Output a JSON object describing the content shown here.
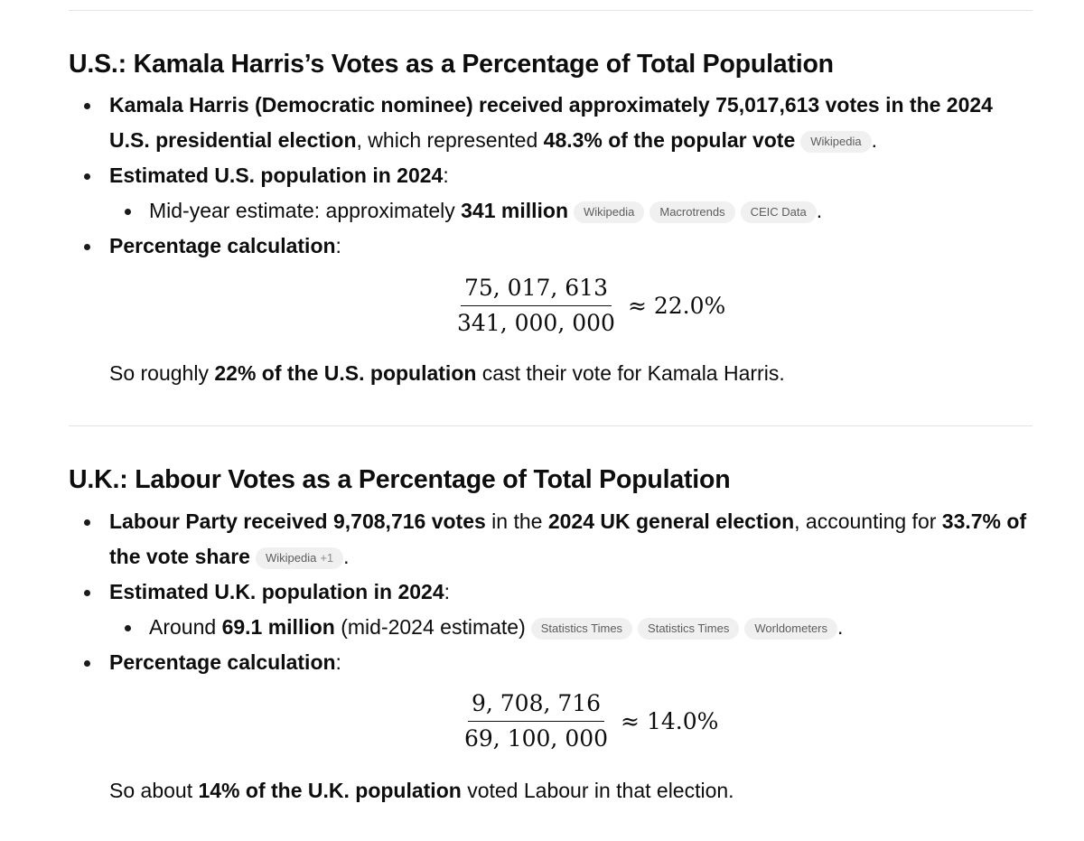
{
  "us": {
    "title": "U.S.: Kamala Harris’s Votes as a Percentage of Total Population",
    "b1": {
      "bold1": "Kamala Harris (Democratic nominee) received approximately 75,017,613 votes in the 2024 U.S. presidential election",
      "text1": ", which represented ",
      "bold2": "48.3% of the popular vote",
      "sources": [
        "Wikipedia"
      ],
      "end": "."
    },
    "b2": {
      "bold": "Estimated U.S. population in 2024",
      "text": ":"
    },
    "b2_sub": {
      "text": "Mid-year estimate: approximately ",
      "bold": "341 million",
      "sources": [
        "Wikipedia",
        "Macrotrends",
        "CEIC Data"
      ],
      "end": "."
    },
    "b3": {
      "bold": "Percentage calculation",
      "text": ":"
    },
    "equation": {
      "numerator": "75, 017, 613",
      "denominator": "341, 000, 000",
      "result": "≈ 22.0%"
    },
    "summary": {
      "text1": "So roughly ",
      "bold": "22% of the U.S. population",
      "text2": " cast their vote for Kamala Harris."
    }
  },
  "uk": {
    "title": "U.K.: Labour Votes as a Percentage of Total Population",
    "b1": {
      "bold1": "Labour Party received 9,708,716 votes",
      "text1": " in the ",
      "bold2": "2024 UK general election",
      "text2": ", accounting for ",
      "bold3": "33.7% of the vote share",
      "source_label": "Wikipedia",
      "source_extra": "+1",
      "end": "."
    },
    "b2": {
      "bold": "Estimated U.K. population in 2024",
      "text": ":"
    },
    "b2_sub": {
      "text1": "Around ",
      "bold": "69.1 million",
      "text2": " (mid-2024 estimate)",
      "sources": [
        "Statistics Times",
        "Statistics Times",
        "Worldometers"
      ],
      "end": "."
    },
    "b3": {
      "bold": "Percentage calculation",
      "text": ":"
    },
    "equation": {
      "numerator": "9, 708, 716",
      "denominator": "69, 100, 000",
      "result": "≈ 14.0%"
    },
    "summary": {
      "text1": "So about ",
      "bold": "14% of the U.K. population",
      "text2": " voted Labour in that election."
    }
  }
}
